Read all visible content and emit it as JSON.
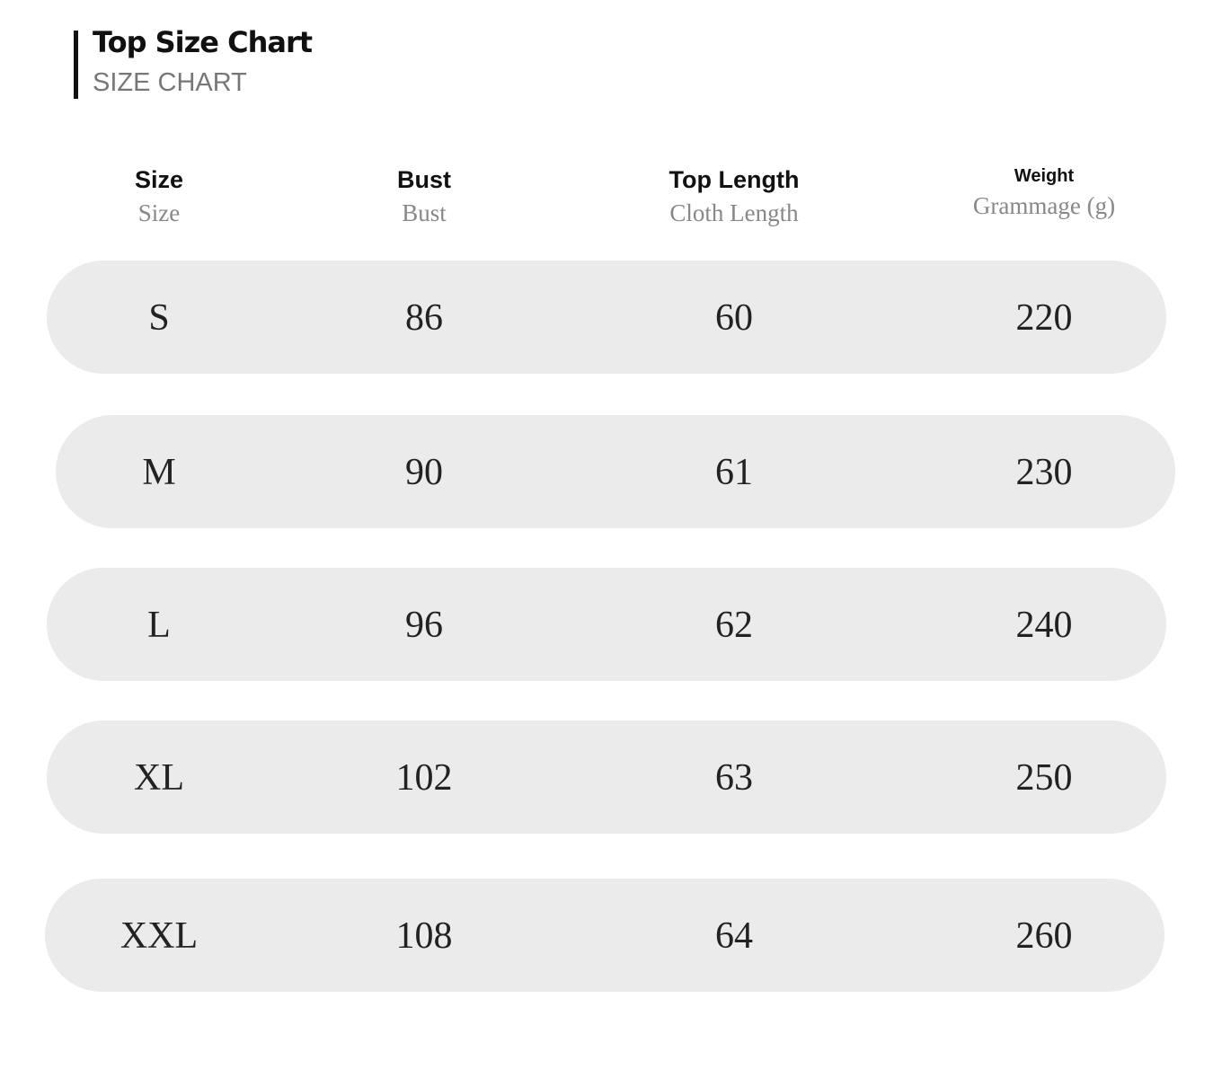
{
  "header": {
    "title": "Top Size Chart",
    "subtitle": "SIZE CHART"
  },
  "table": {
    "columns": [
      {
        "label": "Size",
        "sublabel": "Size"
      },
      {
        "label": "Bust",
        "sublabel": "Bust"
      },
      {
        "label": "Top Length",
        "sublabel": "Cloth Length"
      },
      {
        "label": "Weight",
        "sublabel": "Grammage (g)"
      }
    ],
    "rows": [
      [
        "S",
        86,
        60,
        220
      ],
      [
        "M",
        90,
        61,
        230
      ],
      [
        "L",
        96,
        62,
        240
      ],
      [
        "XL",
        102,
        63,
        250
      ],
      [
        "XXL",
        108,
        64,
        260
      ]
    ]
  }
}
